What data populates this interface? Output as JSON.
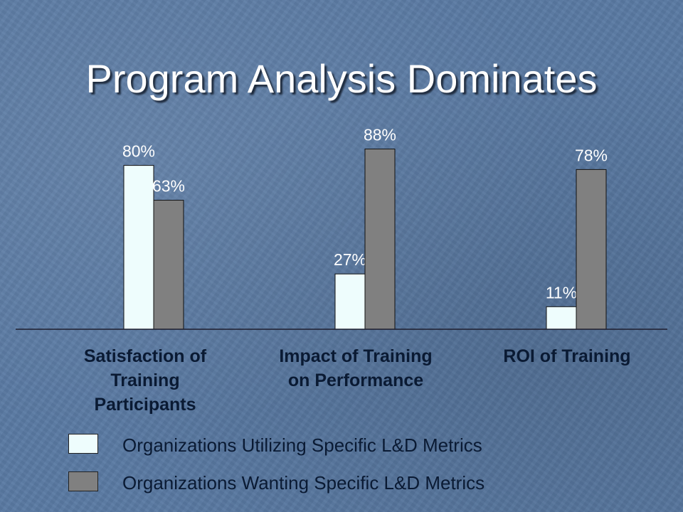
{
  "title": "Program Analysis Dominates",
  "chart_data": {
    "type": "bar",
    "categories": [
      "Satisfaction of Training Participants",
      "Impact of Training on Performance",
      "ROI of Training"
    ],
    "series": [
      {
        "name": "Organizations Utilizing Specific L&D Metrics",
        "values": [
          80,
          27,
          11
        ],
        "color": "#eefdfd",
        "labels": [
          "80%",
          "27%",
          "11%"
        ]
      },
      {
        "name": "Organizations Wanting Specific L&D Metrics",
        "values": [
          63,
          88,
          78
        ],
        "color": "#808080",
        "labels": [
          "63%",
          "88%",
          "78%"
        ]
      }
    ],
    "ylim": [
      0,
      100
    ],
    "xlabel": "",
    "ylabel": "",
    "grid": false,
    "legend_position": "bottom-left"
  },
  "colors": {
    "background": "#5a7aa3",
    "title": "#ffffff",
    "label_text": "#0a1a33",
    "axis": "#1e1e2e"
  }
}
